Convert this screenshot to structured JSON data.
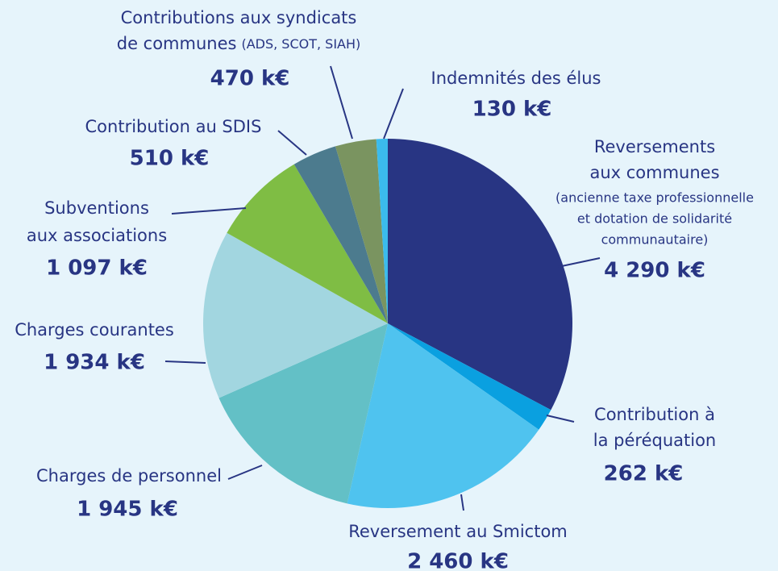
{
  "chart_data": {
    "type": "pie",
    "categories": [
      [
        "Reversements",
        "aux communes"
      ],
      [
        "Contribution à",
        "la péréquation"
      ],
      [
        "Reversement au Smictom"
      ],
      [
        "Charges de personnel"
      ],
      [
        "Charges courantes"
      ],
      [
        "Subventions",
        "aux associations"
      ],
      [
        "Contribution au SDIS"
      ],
      [
        "Contributions aux syndicats",
        "de communes"
      ],
      [
        "Indemnités des élus"
      ]
    ],
    "notes": [
      [
        "(ancienne taxe professionnelle",
        "et dotation de solidarité",
        "communautaire)"
      ],
      null,
      null,
      null,
      null,
      null,
      null,
      [
        "(ADS, SCOT, SIAH)"
      ],
      null
    ],
    "values": [
      4290,
      262,
      2460,
      1945,
      1934,
      1097,
      510,
      470,
      130
    ],
    "value_labels": [
      "4 290 k€",
      "262 k€",
      "2 460 k€",
      "1 945 k€",
      "1 934 k€",
      "1 097 k€",
      "510 k€",
      "470 k€",
      "130 k€"
    ],
    "colors": [
      "#283583",
      "#0aa0e0",
      "#4fc3ef",
      "#63c0c6",
      "#a2d6e0",
      "#7fbd44",
      "#4c7b8e",
      "#7a9460",
      "#3bbbec"
    ]
  }
}
